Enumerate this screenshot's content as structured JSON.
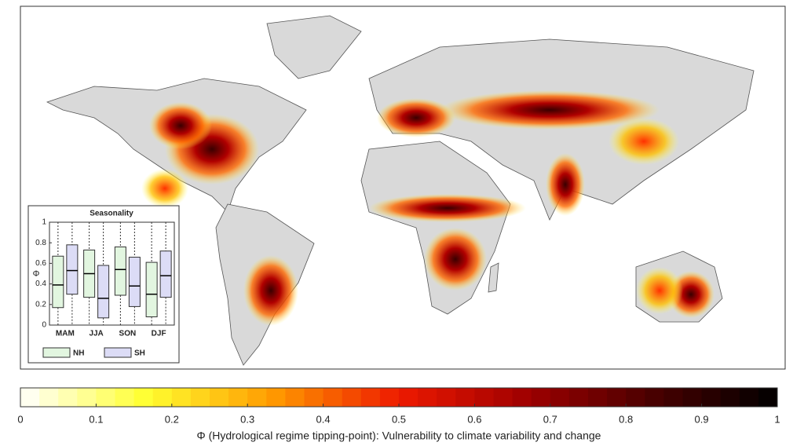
{
  "map": {
    "colorbar": {
      "label": "Φ (Hydrological regime tipping-point): Vulnerability to climate variability and change",
      "lim": [
        0,
        1
      ],
      "ticks": [
        0,
        0.1,
        0.2,
        0.3,
        0.4,
        0.5,
        0.6,
        0.7,
        0.8,
        0.9,
        1
      ],
      "colormap": [
        "#ffffff",
        "#ffff30",
        "#ff9a00",
        "#ee1a00",
        "#a00000",
        "#4a0000",
        "#000000"
      ]
    }
  },
  "chart_data": {
    "type": "box",
    "title": "Seasonality",
    "ylabel": "Φ",
    "categories": [
      "MAM",
      "JJA",
      "SON",
      "DJF"
    ],
    "series": [
      {
        "name": "NH",
        "color": "#e2f6e0",
        "values": [
          {
            "min": 0,
            "q1": 0.17,
            "median": 0.39,
            "q3": 0.67,
            "max": 1
          },
          {
            "min": 0,
            "q1": 0.27,
            "median": 0.5,
            "q3": 0.73,
            "max": 1
          },
          {
            "min": 0,
            "q1": 0.29,
            "median": 0.54,
            "q3": 0.76,
            "max": 1
          },
          {
            "min": 0,
            "q1": 0.08,
            "median": 0.3,
            "q3": 0.61,
            "max": 1
          }
        ]
      },
      {
        "name": "SH",
        "color": "#dcdcf6",
        "values": [
          {
            "min": 0,
            "q1": 0.3,
            "median": 0.53,
            "q3": 0.78,
            "max": 1
          },
          {
            "min": 0,
            "q1": 0.07,
            "median": 0.26,
            "q3": 0.58,
            "max": 1
          },
          {
            "min": 0,
            "q1": 0.18,
            "median": 0.38,
            "q3": 0.66,
            "max": 1
          },
          {
            "min": 0,
            "q1": 0.27,
            "median": 0.48,
            "q3": 0.72,
            "max": 1
          }
        ]
      }
    ],
    "ylim": [
      0,
      1
    ],
    "yticks": [
      0,
      0.2,
      0.4,
      0.6,
      0.8,
      1
    ]
  }
}
